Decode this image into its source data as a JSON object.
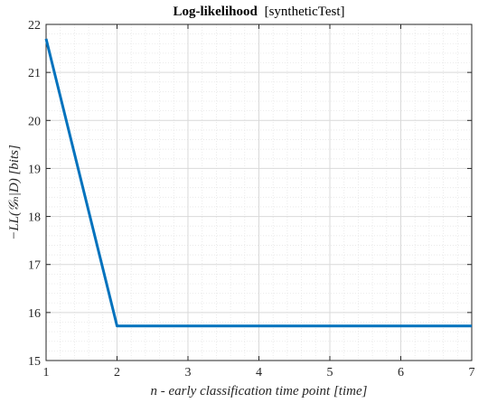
{
  "chart_data": {
    "type": "line",
    "title": "Log-likelihood",
    "subtitle": "[syntheticTest]",
    "xlabel": "n - early classification time point [time]",
    "ylabel": "−LL(𝒢ₙ|D) [bits]",
    "xlim": [
      1,
      7
    ],
    "ylim": [
      15,
      22
    ],
    "x_ticks": [
      1,
      2,
      3,
      4,
      5,
      6,
      7
    ],
    "y_ticks": [
      15,
      16,
      17,
      18,
      19,
      20,
      21,
      22
    ],
    "grid": true,
    "minor_grid": true,
    "series": [
      {
        "x": [
          1,
          2,
          3,
          4,
          5,
          6,
          7
        ],
        "values": [
          21.7,
          15.72,
          15.72,
          15.72,
          15.72,
          15.72,
          15.72
        ]
      }
    ],
    "colors": {
      "line": "#0072BD",
      "grid": "#d9d9d9",
      "axis": "#262626"
    }
  }
}
